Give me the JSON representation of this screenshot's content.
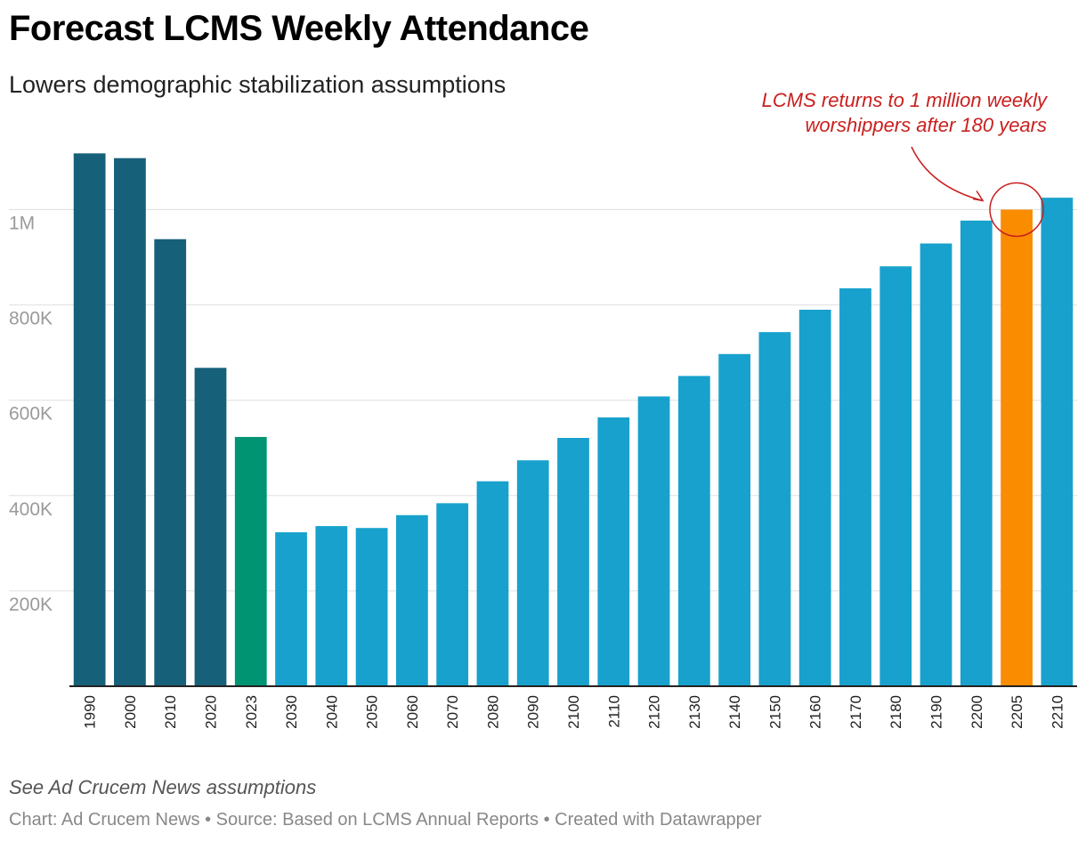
{
  "header": {
    "title": "Forecast LCMS Weekly Attendance",
    "subtitle": "Lowers demographic stabilization assumptions"
  },
  "notes": "See Ad Crucem News assumptions",
  "footer": "Chart: Ad Crucem News • Source: Based on LCMS Annual Reports • Created with Datawrapper",
  "colors": {
    "historical": "#17607a",
    "current": "#009473",
    "forecast": "#18a1cd",
    "highlight": "#fa8c00",
    "annotation": "#c91f1f",
    "grid": "#e0e0e0",
    "axis": "#222222"
  },
  "chart_data": {
    "type": "bar",
    "title": "Forecast LCMS Weekly Attendance",
    "subtitle": "Lowers demographic stabilization assumptions",
    "xlabel": "",
    "ylabel": "",
    "ylim": [
      0,
      1150000
    ],
    "grid": true,
    "categories": [
      "1990",
      "2000",
      "2010",
      "2020",
      "2023",
      "2030",
      "2040",
      "2050",
      "2060",
      "2070",
      "2080",
      "2090",
      "2100",
      "2110",
      "2120",
      "2130",
      "2140",
      "2150",
      "2160",
      "2170",
      "2180",
      "2190",
      "2200",
      "2205",
      "2210"
    ],
    "values": [
      1118000,
      1108000,
      938000,
      668000,
      523000,
      323000,
      336000,
      332000,
      359000,
      384000,
      430000,
      474000,
      521000,
      564000,
      608000,
      651000,
      697000,
      743000,
      790000,
      835000,
      881000,
      929000,
      977000,
      1000000,
      1025000
    ],
    "series_type": [
      "historical",
      "historical",
      "historical",
      "historical",
      "current",
      "forecast",
      "forecast",
      "forecast",
      "forecast",
      "forecast",
      "forecast",
      "forecast",
      "forecast",
      "forecast",
      "forecast",
      "forecast",
      "forecast",
      "forecast",
      "forecast",
      "forecast",
      "forecast",
      "forecast",
      "forecast",
      "highlight",
      "forecast"
    ],
    "yticks": [
      200000,
      400000,
      600000,
      800000,
      1000000
    ],
    "ytick_labels": [
      "200K",
      "400K",
      "600K",
      "800K",
      "1M"
    ],
    "annotation": {
      "lines": [
        "LCMS returns to 1 million weekly",
        "worshippers after 180 years"
      ],
      "target_category": "2205"
    }
  }
}
